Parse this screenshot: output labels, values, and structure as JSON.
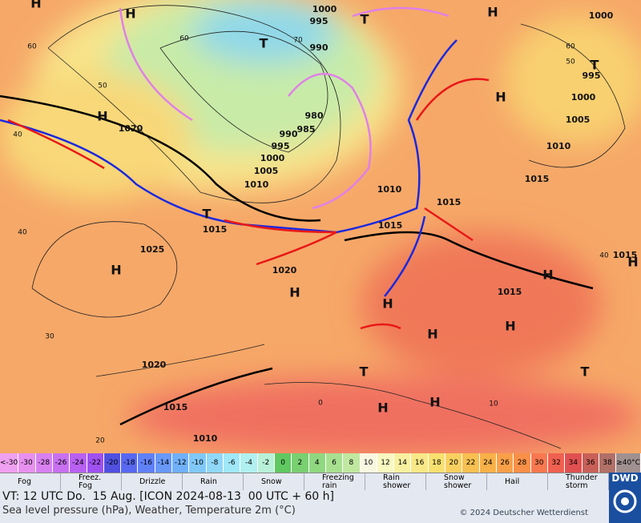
{
  "map": {
    "isobar_labels": [
      "1000",
      "995",
      "990",
      "985",
      "980",
      "990",
      "995",
      "1000",
      "1005",
      "1010",
      "1015",
      "1020",
      "1025",
      "1020",
      "1020",
      "1015",
      "1010",
      "1010",
      "1015",
      "1015",
      "1015",
      "1015",
      "1010",
      "1005",
      "1000",
      "995",
      "1000",
      "1015"
    ],
    "grid_labels": [
      "60",
      "50",
      "40",
      "40",
      "30",
      "20",
      "60",
      "70",
      "60",
      "50",
      "40",
      "0",
      "10"
    ],
    "high_centers": [
      "H",
      "H",
      "H",
      "H",
      "H",
      "H",
      "H",
      "H",
      "H",
      "H",
      "H",
      "H",
      "H",
      "H"
    ],
    "low_centers": [
      "T",
      "T",
      "T",
      "T",
      "T",
      "T"
    ]
  },
  "color_scale": {
    "labels": [
      "<-30",
      "-30",
      "-28",
      "-26",
      "-24",
      "-22",
      "-20",
      "-18",
      "-16",
      "-14",
      "-12",
      "-10",
      "-8",
      "-6",
      "-4",
      "-2",
      "0",
      "2",
      "4",
      "6",
      "8",
      "10",
      "12",
      "14",
      "16",
      "18",
      "20",
      "22",
      "24",
      "26",
      "28",
      "30",
      "32",
      "34",
      "36",
      "38",
      "≥40°C"
    ],
    "colors": [
      "#f0a0f0",
      "#e890f0",
      "#d880f0",
      "#c870f0",
      "#b860f0",
      "#a050f0",
      "#5050e0",
      "#5868f0",
      "#6080f8",
      "#6898f8",
      "#70b0f8",
      "#80c8f8",
      "#90d8f8",
      "#a0e8f8",
      "#b0f0f0",
      "#b8f0d8",
      "#60c860",
      "#78d070",
      "#90d880",
      "#a8e090",
      "#c0e8a0",
      "#f8f8e0",
      "#f8f8c0",
      "#f8f0a0",
      "#f8e888",
      "#f8e070",
      "#f8d060",
      "#f8c050",
      "#f8b048",
      "#f8a048",
      "#f89048",
      "#f87850",
      "#f06050",
      "#e05050",
      "#c86058",
      "#b07068",
      "#a09090"
    ]
  },
  "weather_legend": [
    "Fog",
    "Freez.\nFog",
    "Drizzle",
    "Rain",
    "Snow",
    "Freezing\nrain",
    "Rain\nshower",
    "Snow\nshower",
    "Hail",
    "Thunder\nstorm"
  ],
  "footer": {
    "valid_time": "VT: 12 UTC Do.  15 Aug. [ICON 2024-08-13  00 UTC + 60 h]",
    "description": "Sea level pressure (hPa), Weather, Temperature 2m (°C)",
    "copyright": "© 2024 Deutscher Wetterdienst",
    "logo": "DWD"
  }
}
